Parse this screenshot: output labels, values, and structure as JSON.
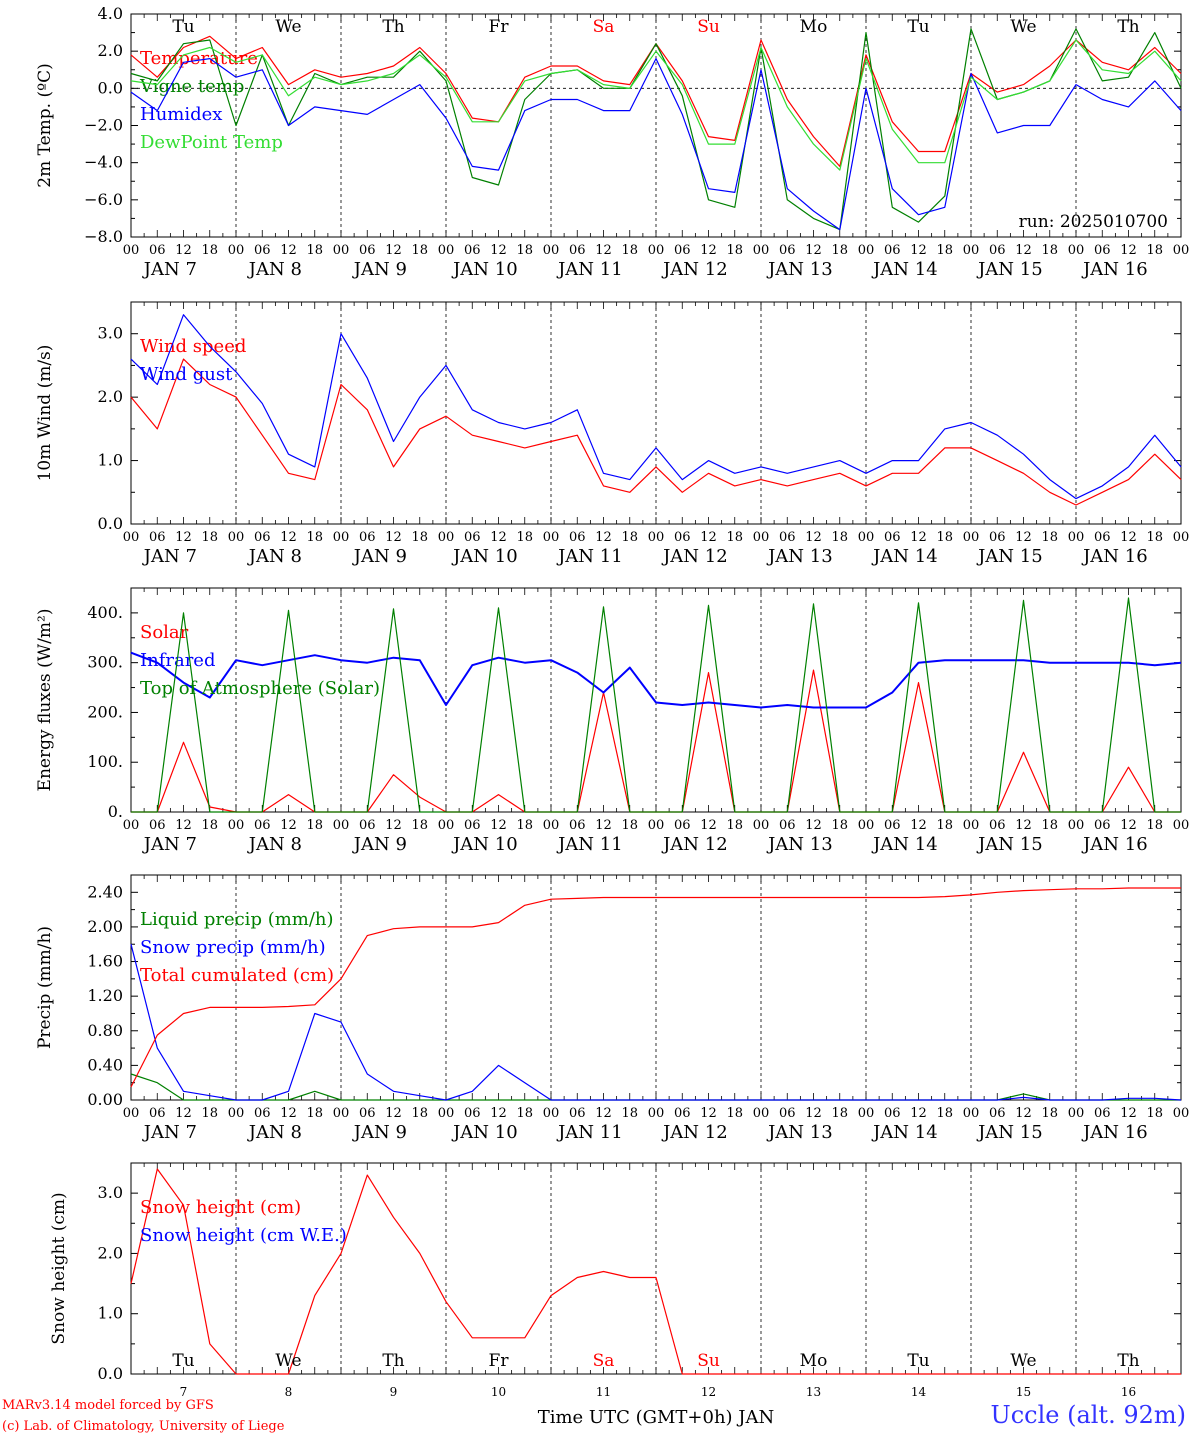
{
  "footer": {
    "credit_model": "MARv3.14 model forced by GFS",
    "credit_lab": "(c) Lab. of Climatology, University of Liege",
    "station": "Uccle (alt. 92m)",
    "time_axis_label": "Time UTC (GMT+0h) JAN"
  },
  "colors": {
    "red": "#ff0000",
    "green": "#008000",
    "lightgreen": "#33dd33",
    "blue": "#0000ff",
    "dayRed": "#ff0000",
    "dayBlack": "#000000"
  },
  "chart_data": [
    {
      "type": "line",
      "id": "temp",
      "ylabel": "2m Temp. (ºC)",
      "ylim": [
        -8,
        4
      ],
      "yticks": [
        -8,
        -6,
        -4,
        -2,
        0,
        2,
        4
      ],
      "ytick_labels": [
        "−8.0",
        "−6.0",
        "−4.0",
        "−2.0",
        "0.0",
        "2.0",
        "4.0"
      ],
      "zero_line": true,
      "annotation": "run: 2025010700",
      "day_labels_top": [
        "Tu",
        "We",
        "Th",
        "Fr",
        "Sa",
        "Su",
        "Mo",
        "Tu",
        "We",
        "Th"
      ],
      "x_hours": [
        0,
        6,
        12,
        18,
        24,
        30,
        36,
        42,
        48,
        54,
        60,
        66,
        72,
        78,
        84,
        90,
        96,
        102,
        108,
        114,
        120,
        126,
        132,
        138,
        144,
        150,
        156,
        162,
        168,
        174,
        180,
        186,
        192,
        198,
        204,
        210,
        216,
        222,
        228,
        234,
        240
      ],
      "series": [
        {
          "name": "Temperature",
          "color": "red",
          "values": [
            1.8,
            0.6,
            2.2,
            2.8,
            1.6,
            2.2,
            0.2,
            1.0,
            0.6,
            0.8,
            1.2,
            2.2,
            0.8,
            -1.6,
            -1.8,
            0.6,
            1.2,
            1.2,
            0.4,
            0.2,
            2.4,
            0.4,
            -2.6,
            -2.8,
            2.6,
            -0.6,
            -2.6,
            -4.2,
            1.8,
            -1.8,
            -3.4,
            -3.4,
            0.8,
            -0.2,
            0.2,
            1.2,
            2.6,
            1.4,
            1.0,
            2.2,
            0.8
          ]
        },
        {
          "name": "Vigne temp",
          "color": "green",
          "values": [
            0.8,
            0.4,
            2.4,
            2.6,
            -2.0,
            1.8,
            -2.0,
            0.8,
            0.2,
            0.6,
            0.6,
            2.0,
            0.4,
            -4.8,
            -5.2,
            -0.6,
            0.8,
            1.0,
            0.0,
            0.0,
            2.4,
            -0.4,
            -6.0,
            -6.4,
            2.2,
            -6.0,
            -7.0,
            -7.6,
            3.0,
            -6.4,
            -7.2,
            -5.8,
            3.2,
            -0.6,
            -0.2,
            0.4,
            3.2,
            0.4,
            0.6,
            3.0,
            0.0
          ]
        },
        {
          "name": "Humidex",
          "color": "blue",
          "values": [
            -0.2,
            -1.2,
            1.4,
            1.6,
            0.6,
            1.0,
            -2.0,
            -1.0,
            -1.2,
            -1.4,
            -0.6,
            0.2,
            -1.6,
            -4.2,
            -4.4,
            -1.2,
            -0.6,
            -0.6,
            -1.2,
            -1.2,
            1.6,
            -1.4,
            -5.4,
            -5.6,
            1.0,
            -5.4,
            -6.6,
            -7.6,
            0.0,
            -5.4,
            -6.8,
            -6.4,
            0.8,
            -2.4,
            -2.0,
            -2.0,
            0.2,
            -0.6,
            -1.0,
            0.4,
            -1.2
          ]
        },
        {
          "name": "DewPoint Temp",
          "color": "lightgreen",
          "values": [
            0.4,
            0.2,
            1.8,
            2.2,
            1.4,
            1.8,
            -0.4,
            0.6,
            0.2,
            0.4,
            0.8,
            1.8,
            0.6,
            -1.8,
            -1.8,
            0.4,
            0.8,
            1.0,
            0.2,
            0.0,
            2.0,
            0.2,
            -3.0,
            -3.0,
            2.2,
            -1.0,
            -3.0,
            -4.4,
            1.6,
            -2.2,
            -4.0,
            -4.0,
            0.6,
            -0.6,
            -0.2,
            0.4,
            2.6,
            1.0,
            0.8,
            2.0,
            0.4
          ]
        }
      ]
    },
    {
      "type": "line",
      "id": "wind",
      "ylabel": "10m Wind (m/s)",
      "ylim": [
        0,
        3.5
      ],
      "yticks": [
        0,
        1,
        2,
        3
      ],
      "ytick_labels": [
        "0.0",
        "1.0",
        "2.0",
        "3.0"
      ],
      "x_hours": [
        0,
        6,
        12,
        18,
        24,
        30,
        36,
        42,
        48,
        54,
        60,
        66,
        72,
        78,
        84,
        90,
        96,
        102,
        108,
        114,
        120,
        126,
        132,
        138,
        144,
        150,
        156,
        162,
        168,
        174,
        180,
        186,
        192,
        198,
        204,
        210,
        216,
        222,
        228,
        234,
        240
      ],
      "series": [
        {
          "name": "Wind speed",
          "color": "red",
          "values": [
            2.0,
            1.5,
            2.6,
            2.2,
            2.0,
            1.4,
            0.8,
            0.7,
            2.2,
            1.8,
            0.9,
            1.5,
            1.7,
            1.4,
            1.3,
            1.2,
            1.3,
            1.4,
            0.6,
            0.5,
            0.9,
            0.5,
            0.8,
            0.6,
            0.7,
            0.6,
            0.7,
            0.8,
            0.6,
            0.8,
            0.8,
            1.2,
            1.2,
            1.0,
            0.8,
            0.5,
            0.3,
            0.5,
            0.7,
            1.1,
            0.7
          ]
        },
        {
          "name": "Wind gust",
          "color": "blue",
          "values": [
            2.6,
            2.2,
            3.3,
            2.8,
            2.4,
            1.9,
            1.1,
            0.9,
            3.0,
            2.3,
            1.3,
            2.0,
            2.5,
            1.8,
            1.6,
            1.5,
            1.6,
            1.8,
            0.8,
            0.7,
            1.2,
            0.7,
            1.0,
            0.8,
            0.9,
            0.8,
            0.9,
            1.0,
            0.8,
            1.0,
            1.0,
            1.5,
            1.6,
            1.4,
            1.1,
            0.7,
            0.4,
            0.6,
            0.9,
            1.4,
            0.9
          ]
        }
      ]
    },
    {
      "type": "line",
      "id": "energy",
      "ylabel": "Energy fluxes (W/m²)",
      "ylim": [
        0,
        450
      ],
      "yticks": [
        0,
        100,
        200,
        300,
        400
      ],
      "ytick_labels": [
        "0.",
        "100.",
        "200.",
        "300.",
        "400."
      ],
      "x_hours": [
        0,
        6,
        12,
        18,
        24,
        30,
        36,
        42,
        48,
        54,
        60,
        66,
        72,
        78,
        84,
        90,
        96,
        102,
        108,
        114,
        120,
        126,
        132,
        138,
        144,
        150,
        156,
        162,
        168,
        174,
        180,
        186,
        192,
        198,
        204,
        210,
        216,
        222,
        228,
        234,
        240
      ],
      "series": [
        {
          "name": "Solar",
          "color": "red",
          "values": [
            0,
            0,
            140,
            10,
            0,
            0,
            35,
            0,
            0,
            0,
            75,
            30,
            0,
            0,
            35,
            0,
            0,
            0,
            240,
            0,
            0,
            0,
            280,
            0,
            0,
            0,
            285,
            0,
            0,
            0,
            260,
            0,
            0,
            0,
            120,
            0,
            0,
            0,
            90,
            0,
            0
          ]
        },
        {
          "name": "Infrared",
          "color": "blue",
          "values": [
            320,
            300,
            260,
            230,
            305,
            295,
            305,
            315,
            305,
            300,
            310,
            305,
            215,
            295,
            310,
            300,
            305,
            280,
            240,
            290,
            220,
            215,
            220,
            215,
            210,
            215,
            210,
            210,
            210,
            240,
            300,
            305,
            305,
            305,
            305,
            300,
            300,
            300,
            300,
            295,
            300
          ]
        },
        {
          "name": "Top of Atmosphere (Solar)",
          "color": "green",
          "values": [
            0,
            0,
            400,
            0,
            0,
            0,
            405,
            0,
            0,
            0,
            408,
            0,
            0,
            0,
            410,
            0,
            0,
            0,
            412,
            0,
            0,
            0,
            415,
            0,
            0,
            0,
            418,
            0,
            0,
            0,
            420,
            0,
            0,
            0,
            425,
            0,
            0,
            0,
            430,
            0,
            0
          ]
        }
      ]
    },
    {
      "type": "line",
      "id": "precip",
      "ylabel": "Precip (mm/h)",
      "ylim": [
        0,
        2.6
      ],
      "yticks": [
        0,
        0.4,
        0.8,
        1.2,
        1.6,
        2.0,
        2.4
      ],
      "ytick_labels": [
        "0.00",
        "0.40",
        "0.80",
        "1.20",
        "1.60",
        "2.00",
        "2.40"
      ],
      "x_hours": [
        0,
        6,
        12,
        18,
        24,
        30,
        36,
        42,
        48,
        54,
        60,
        66,
        72,
        78,
        84,
        90,
        96,
        102,
        108,
        114,
        120,
        126,
        132,
        138,
        144,
        150,
        156,
        162,
        168,
        174,
        180,
        186,
        192,
        198,
        204,
        210,
        216,
        222,
        228,
        234,
        240
      ],
      "series": [
        {
          "name": "Liquid precip (mm/h)",
          "color": "green",
          "values": [
            0.3,
            0.2,
            0.0,
            0.0,
            0.0,
            0.0,
            0.0,
            0.1,
            0.0,
            0.0,
            0.0,
            0.0,
            0.0,
            0.0,
            0.0,
            0.0,
            0.0,
            0.0,
            0.0,
            0.0,
            0.0,
            0.0,
            0.0,
            0.0,
            0.0,
            0.0,
            0.0,
            0.0,
            0.0,
            0.0,
            0.0,
            0.0,
            0.0,
            0.0,
            0.07,
            0.0,
            0.0,
            0.0,
            0.0,
            0.0,
            0.0
          ]
        },
        {
          "name": "Snow precip (mm/h)",
          "color": "blue",
          "values": [
            1.8,
            0.6,
            0.1,
            0.05,
            0.0,
            0.0,
            0.1,
            1.0,
            0.9,
            0.3,
            0.1,
            0.05,
            0.0,
            0.1,
            0.4,
            0.2,
            0.0,
            0.0,
            0.0,
            0.0,
            0.0,
            0.0,
            0.0,
            0.0,
            0.0,
            0.0,
            0.0,
            0.0,
            0.0,
            0.0,
            0.0,
            0.0,
            0.0,
            0.0,
            0.03,
            0.0,
            0.0,
            0.0,
            0.02,
            0.02,
            0.0
          ]
        },
        {
          "name": "Total cumulated (cm)",
          "color": "red",
          "values": [
            0.15,
            0.75,
            1.0,
            1.07,
            1.07,
            1.07,
            1.08,
            1.1,
            1.4,
            1.9,
            1.98,
            2.0,
            2.0,
            2.0,
            2.05,
            2.25,
            2.32,
            2.33,
            2.34,
            2.34,
            2.34,
            2.34,
            2.34,
            2.34,
            2.34,
            2.34,
            2.34,
            2.34,
            2.34,
            2.34,
            2.34,
            2.35,
            2.37,
            2.4,
            2.42,
            2.43,
            2.44,
            2.44,
            2.45,
            2.45,
            2.45
          ]
        }
      ]
    },
    {
      "type": "line",
      "id": "snow",
      "ylabel": "Snow height (cm)",
      "ylim": [
        0,
        3.5
      ],
      "yticks": [
        0,
        1,
        2,
        3
      ],
      "ytick_labels": [
        "0.0",
        "1.0",
        "2.0",
        "3.0"
      ],
      "day_labels_inside": [
        "Tu",
        "We",
        "Th",
        "Fr",
        "Sa",
        "Su",
        "Mo",
        "Tu",
        "We",
        "Th"
      ],
      "date_labels": [
        "7",
        "8",
        "9",
        "10",
        "11",
        "12",
        "13",
        "14",
        "15",
        "16"
      ],
      "x_hours": [
        0,
        6,
        12,
        18,
        24,
        30,
        36,
        42,
        48,
        54,
        60,
        66,
        72,
        78,
        84,
        90,
        96,
        102,
        108,
        114,
        120,
        126,
        132,
        138,
        144,
        150,
        156,
        162,
        168,
        174,
        180,
        186,
        192,
        198,
        204,
        210,
        216,
        222,
        228,
        234,
        240
      ],
      "series": [
        {
          "name": "Snow height (cm)",
          "color": "red",
          "values": [
            1.5,
            3.4,
            2.8,
            0.5,
            0.0,
            0.0,
            0.0,
            1.3,
            2.0,
            3.3,
            2.6,
            2.0,
            1.2,
            0.6,
            0.6,
            0.6,
            1.3,
            1.6,
            1.7,
            1.6,
            1.6,
            0.0,
            0.0,
            0.0,
            0.0,
            0.0,
            0.0,
            0.0,
            0.0,
            0.0,
            0.0,
            0.0,
            0.0,
            0.0,
            0.0,
            0.0,
            0.0,
            0.0,
            0.0,
            0.0,
            0.0
          ]
        },
        {
          "name": "Snow height (cm W.E.)",
          "color": "blue",
          "values": []
        }
      ]
    }
  ],
  "shared_x": {
    "hour_labels": [
      "00",
      "06",
      "12",
      "18"
    ],
    "final_label": "00",
    "date_labels": [
      "JAN  7",
      "JAN  8",
      "JAN  9",
      "JAN 10",
      "JAN 11",
      "JAN 12",
      "JAN 13",
      "JAN 14",
      "JAN 15",
      "JAN 16"
    ],
    "weekend_days": [
      "Sa",
      "Su"
    ]
  }
}
